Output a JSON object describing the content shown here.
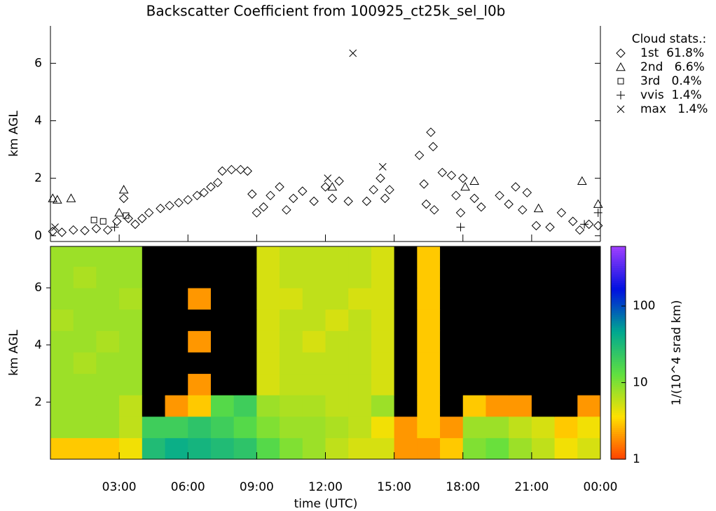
{
  "chart_data": [
    {
      "type": "scatter",
      "title": "Backscatter Coefficient from 100925_ct25k_sel_l0b",
      "ylabel": "km AGL",
      "legend_title": "Cloud stats.:",
      "xlim": [
        0,
        24
      ],
      "ylim": [
        -0.2,
        7.3
      ],
      "yticks": [
        0,
        2,
        4,
        6
      ],
      "series": [
        {
          "name": "1st  61.8%",
          "marker": "diamond",
          "color": "#000000",
          "x": [
            0.1,
            0.5,
            1.0,
            1.5,
            2.0,
            2.5,
            2.9,
            3.2,
            3.4,
            3.7,
            4.0,
            4.3,
            4.8,
            5.2,
            5.6,
            6.0,
            6.4,
            6.7,
            7.0,
            7.3,
            7.5,
            7.9,
            8.3,
            8.6,
            8.8,
            9.0,
            9.3,
            9.6,
            10.0,
            10.3,
            10.6,
            11.0,
            11.5,
            12.0,
            12.3,
            12.6,
            13.0,
            13.8,
            14.1,
            14.4,
            14.6,
            14.8,
            16.1,
            16.3,
            16.4,
            16.6,
            16.7,
            16.75,
            17.1,
            17.5,
            17.7,
            17.9,
            18.0,
            18.5,
            18.8,
            19.6,
            20.0,
            20.3,
            20.6,
            20.8,
            21.2,
            21.8,
            22.3,
            22.8,
            23.1,
            23.5,
            23.9
          ],
          "values": [
            0.15,
            0.12,
            0.2,
            0.18,
            0.25,
            0.2,
            0.5,
            1.3,
            0.6,
            0.4,
            0.6,
            0.8,
            0.95,
            1.05,
            1.15,
            1.25,
            1.4,
            1.5,
            1.7,
            1.85,
            2.25,
            2.3,
            2.3,
            2.25,
            1.45,
            0.8,
            1.0,
            1.4,
            1.7,
            0.9,
            1.3,
            1.55,
            1.2,
            1.7,
            1.3,
            1.9,
            1.2,
            1.2,
            1.6,
            2.0,
            1.3,
            1.6,
            2.8,
            1.8,
            1.1,
            3.6,
            3.1,
            0.9,
            2.2,
            2.1,
            1.4,
            0.8,
            2.0,
            1.3,
            1.0,
            1.4,
            1.1,
            1.7,
            0.9,
            1.5,
            0.35,
            0.3,
            0.8,
            0.5,
            0.2,
            0.4,
            0.35
          ]
        },
        {
          "name": "2nd   6.6%",
          "marker": "triangle",
          "color": "#000000",
          "x": [
            0.1,
            0.3,
            0.9,
            3.0,
            3.2,
            12.3,
            18.1,
            18.5,
            21.3,
            23.2,
            23.9
          ],
          "values": [
            1.3,
            1.25,
            1.3,
            0.8,
            1.6,
            1.7,
            1.7,
            1.9,
            0.95,
            1.9,
            1.1
          ]
        },
        {
          "name": "3rd   0.4%",
          "marker": "square",
          "color": "#000000",
          "x": [
            1.9,
            2.3,
            3.3
          ],
          "values": [
            0.55,
            0.5,
            0.7
          ]
        },
        {
          "name": "vvis  1.4%",
          "marker": "plus",
          "color": "#000000",
          "x": [
            2.8,
            17.9,
            23.3,
            23.9
          ],
          "values": [
            0.3,
            0.3,
            0.4,
            0.8
          ]
        },
        {
          "name": "max   1.4%",
          "marker": "cross",
          "color": "#000000",
          "x": [
            0.2,
            12.1,
            13.2,
            14.5
          ],
          "values": [
            0.3,
            2.0,
            6.35,
            2.4
          ]
        }
      ]
    },
    {
      "type": "heatmap",
      "xlabel": "time (UTC)",
      "ylabel": "km AGL",
      "colorbar_label": "1/(10^4 srad km)",
      "xlim": [
        0,
        24
      ],
      "ylim": [
        0,
        7.45
      ],
      "xticks": [
        {
          "value": 3,
          "label": "03:00"
        },
        {
          "value": 6,
          "label": "06:00"
        },
        {
          "value": 9,
          "label": "09:00"
        },
        {
          "value": 12,
          "label": "12:00"
        },
        {
          "value": 15,
          "label": "15:00"
        },
        {
          "value": 18,
          "label": "18:00"
        },
        {
          "value": 21,
          "label": "21:00"
        },
        {
          "value": 24,
          "label": "00:00"
        }
      ],
      "yticks": [
        2,
        4,
        6
      ],
      "clim": [
        1,
        600
      ],
      "cticks": [
        1,
        10,
        100
      ],
      "log_color": true,
      "colorscale": [
        "#ff4000",
        "#ffe000",
        "#60e040",
        "#00a890",
        "#0010e0",
        "#a040ff"
      ],
      "below_color": "#000000",
      "x": [
        0.5,
        1.5,
        2.5,
        3.5,
        4.5,
        5.5,
        6.5,
        7.5,
        8.5,
        9.5,
        10.5,
        11.5,
        12.5,
        13.5,
        14.5,
        15.5,
        16.5,
        17.5,
        18.5,
        19.5,
        20.5,
        21.5,
        22.5,
        23.5
      ],
      "y": [
        0.375,
        1.125,
        1.875,
        2.625,
        3.375,
        4.125,
        4.875,
        5.625,
        6.375,
        7.125
      ],
      "z": [
        [
          3,
          3,
          3,
          4,
          30,
          40,
          35,
          30,
          25,
          15,
          10,
          8,
          6,
          5,
          5,
          2,
          2,
          3,
          10,
          12,
          8,
          6,
          4,
          5
        ],
        [
          8,
          8,
          8,
          6,
          20,
          20,
          25,
          20,
          15,
          10,
          8,
          8,
          7,
          6,
          4,
          2,
          3,
          2,
          8,
          8,
          6,
          5,
          3,
          4
        ],
        [
          8,
          8,
          8,
          6,
          0.5,
          2,
          3,
          15,
          20,
          8,
          7,
          7,
          6,
          6,
          8,
          0.5,
          3,
          0.5,
          3,
          2,
          2,
          0.5,
          0.5,
          2
        ],
        [
          8,
          8,
          8,
          8,
          0.5,
          0.5,
          2,
          0.5,
          0.5,
          5,
          6,
          6,
          6,
          6,
          5,
          0.5,
          3,
          0.5,
          0.5,
          0.5,
          0.5,
          0.5,
          0.5,
          0.5
        ],
        [
          8,
          7,
          8,
          8,
          0.5,
          0.5,
          0.5,
          0.5,
          0.5,
          5,
          6,
          6,
          6,
          6,
          5,
          0.5,
          3,
          0.5,
          0.5,
          0.5,
          0.5,
          0.5,
          0.5,
          0.5
        ],
        [
          8,
          8,
          7,
          8,
          0.5,
          0.5,
          2,
          0.5,
          0.5,
          5,
          6,
          5,
          6,
          6,
          5,
          0.5,
          3,
          0.5,
          0.5,
          0.5,
          0.5,
          0.5,
          0.5,
          0.5
        ],
        [
          7,
          8,
          8,
          8,
          0.5,
          0.5,
          0.5,
          0.5,
          0.5,
          5,
          6,
          6,
          5,
          6,
          5,
          0.5,
          3,
          0.5,
          0.5,
          0.5,
          0.5,
          0.5,
          0.5,
          0.5
        ],
        [
          8,
          8,
          8,
          7,
          0.5,
          0.5,
          2,
          0.5,
          0.5,
          5,
          5,
          6,
          6,
          5,
          5,
          0.5,
          3,
          0.5,
          0.5,
          0.5,
          0.5,
          0.5,
          0.5,
          0.5
        ],
        [
          8,
          7,
          8,
          8,
          0.5,
          0.5,
          0.5,
          0.5,
          0.5,
          5,
          6,
          6,
          6,
          6,
          5,
          0.5,
          3,
          0.5,
          0.5,
          0.5,
          0.5,
          0.5,
          0.5,
          0.5
        ],
        [
          8,
          8,
          8,
          8,
          0.5,
          0.5,
          0.5,
          0.5,
          0.5,
          5,
          6,
          6,
          6,
          6,
          5,
          0.5,
          3,
          0.5,
          0.5,
          0.5,
          0.5,
          0.5,
          0.5,
          0.5
        ]
      ]
    }
  ]
}
